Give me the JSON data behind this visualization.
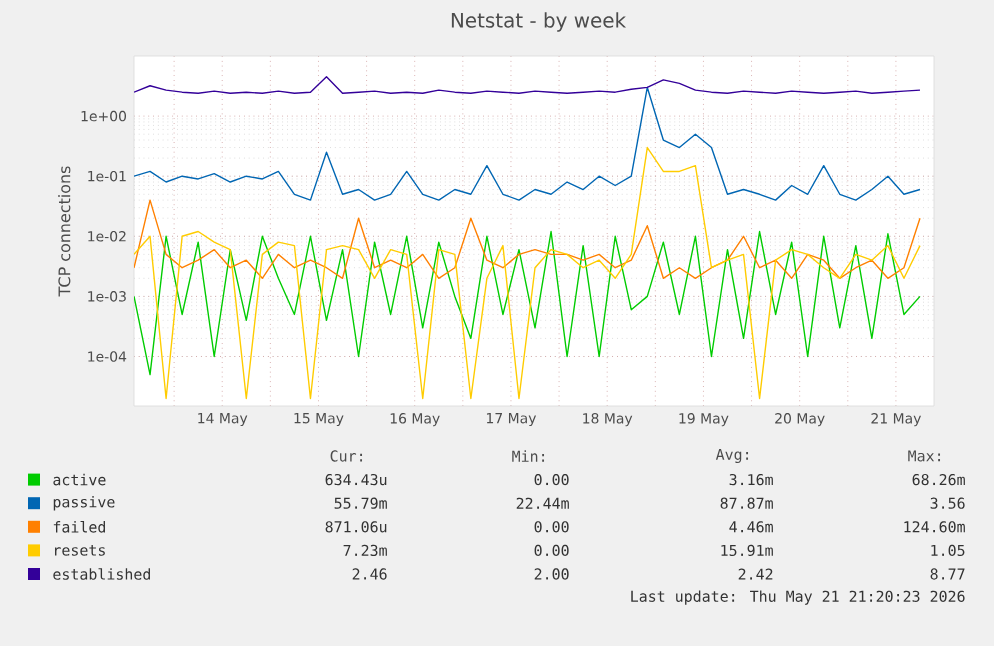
{
  "chart_data": {
    "type": "line",
    "title": "Netstat - by week",
    "ylabel": "TCP connections",
    "log": "y",
    "grid": true,
    "legend": "bottom",
    "xlim": [
      "2026-05-13T14:00",
      "2026-05-21T21:30"
    ],
    "ylim": [
      1.5e-05,
      10
    ],
    "yticks": [
      {
        "value": 0.0001,
        "label": "1e-04"
      },
      {
        "value": 0.001,
        "label": "1e-03"
      },
      {
        "value": 0.01,
        "label": "1e-02"
      },
      {
        "value": 0.1,
        "label": "1e-01"
      },
      {
        "value": 1,
        "label": "1e+00"
      }
    ],
    "xticks": [
      {
        "value": "2026-05-14T00:00",
        "label": null
      },
      {
        "value": "2026-05-14T12:00",
        "label": "14 May"
      },
      {
        "value": "2026-05-15T00:00",
        "label": null
      },
      {
        "value": "2026-05-15T12:00",
        "label": "15 May"
      },
      {
        "value": "2026-05-16T00:00",
        "label": null
      },
      {
        "value": "2026-05-16T12:00",
        "label": "16 May"
      },
      {
        "value": "2026-05-17T00:00",
        "label": null
      },
      {
        "value": "2026-05-17T12:00",
        "label": "17 May"
      },
      {
        "value": "2026-05-18T00:00",
        "label": null
      },
      {
        "value": "2026-05-18T12:00",
        "label": "18 May"
      },
      {
        "value": "2026-05-19T00:00",
        "label": null
      },
      {
        "value": "2026-05-19T12:00",
        "label": "19 May"
      },
      {
        "value": "2026-05-20T00:00",
        "label": null
      },
      {
        "value": "2026-05-20T12:00",
        "label": "20 May"
      },
      {
        "value": "2026-05-21T00:00",
        "label": null
      },
      {
        "value": "2026-05-21T12:00",
        "label": "21 May"
      }
    ],
    "x": [
      "2026-05-13T14:00",
      "2026-05-13T18:00",
      "2026-05-13T22:00",
      "2026-05-14T02:00",
      "2026-05-14T06:00",
      "2026-05-14T10:00",
      "2026-05-14T14:00",
      "2026-05-14T18:00",
      "2026-05-14T22:00",
      "2026-05-15T02:00",
      "2026-05-15T06:00",
      "2026-05-15T10:00",
      "2026-05-15T14:00",
      "2026-05-15T18:00",
      "2026-05-15T22:00",
      "2026-05-16T02:00",
      "2026-05-16T06:00",
      "2026-05-16T10:00",
      "2026-05-16T14:00",
      "2026-05-16T18:00",
      "2026-05-16T22:00",
      "2026-05-17T02:00",
      "2026-05-17T06:00",
      "2026-05-17T10:00",
      "2026-05-17T14:00",
      "2026-05-17T18:00",
      "2026-05-17T22:00",
      "2026-05-18T02:00",
      "2026-05-18T06:00",
      "2026-05-18T10:00",
      "2026-05-18T14:00",
      "2026-05-18T18:00",
      "2026-05-18T22:00",
      "2026-05-19T02:00",
      "2026-05-19T06:00",
      "2026-05-19T10:00",
      "2026-05-19T14:00",
      "2026-05-19T18:00",
      "2026-05-19T22:00",
      "2026-05-20T02:00",
      "2026-05-20T06:00",
      "2026-05-20T10:00",
      "2026-05-20T14:00",
      "2026-05-20T18:00",
      "2026-05-20T22:00",
      "2026-05-21T02:00",
      "2026-05-21T06:00",
      "2026-05-21T10:00",
      "2026-05-21T14:00",
      "2026-05-21T18:00"
    ],
    "series": [
      {
        "name": "active",
        "color": "#00cc00",
        "values": [
          0.001,
          5e-05,
          0.01,
          0.0005,
          0.008,
          0.0001,
          0.006,
          0.0004,
          0.01,
          0.002,
          0.0005,
          0.01,
          0.0004,
          0.006,
          0.0001,
          0.008,
          0.0005,
          0.01,
          0.0003,
          0.008,
          0.001,
          0.0002,
          0.01,
          0.0005,
          0.006,
          0.0003,
          0.012,
          0.0001,
          0.007,
          0.0001,
          0.01,
          0.0006,
          0.001,
          0.008,
          0.0005,
          0.01,
          0.0001,
          0.006,
          0.0002,
          0.012,
          0.0005,
          0.008,
          0.0001,
          0.01,
          0.0003,
          0.007,
          0.0002,
          0.011,
          0.0005,
          0.001
        ]
      },
      {
        "name": "passive",
        "color": "#0066b3",
        "values": [
          0.1,
          0.12,
          0.08,
          0.1,
          0.09,
          0.11,
          0.08,
          0.1,
          0.09,
          0.12,
          0.05,
          0.04,
          0.25,
          0.05,
          0.06,
          0.04,
          0.05,
          0.12,
          0.05,
          0.04,
          0.06,
          0.05,
          0.15,
          0.05,
          0.04,
          0.06,
          0.05,
          0.08,
          0.06,
          0.1,
          0.07,
          0.1,
          3.0,
          0.4,
          0.3,
          0.5,
          0.3,
          0.05,
          0.06,
          0.05,
          0.04,
          0.07,
          0.05,
          0.15,
          0.05,
          0.04,
          0.06,
          0.1,
          0.05,
          0.06
        ]
      },
      {
        "name": "failed",
        "color": "#ff8000",
        "values": [
          0.003,
          0.04,
          0.005,
          0.003,
          0.004,
          0.006,
          0.003,
          0.004,
          0.002,
          0.005,
          0.003,
          0.004,
          0.003,
          0.002,
          0.02,
          0.003,
          0.004,
          0.003,
          0.005,
          0.002,
          0.003,
          0.02,
          0.004,
          0.003,
          0.005,
          0.006,
          0.005,
          0.005,
          0.004,
          0.005,
          0.003,
          0.004,
          0.015,
          0.002,
          0.003,
          0.002,
          0.003,
          0.004,
          0.01,
          0.003,
          0.004,
          0.002,
          0.005,
          0.004,
          0.002,
          0.003,
          0.004,
          0.002,
          0.003,
          0.02
        ]
      },
      {
        "name": "resets",
        "color": "#ffcc00",
        "values": [
          0.005,
          0.01,
          2e-05,
          0.01,
          0.012,
          0.008,
          0.006,
          2e-05,
          0.005,
          0.008,
          0.007,
          2e-05,
          0.006,
          0.007,
          0.006,
          0.002,
          0.006,
          0.005,
          2e-05,
          0.006,
          0.005,
          2e-05,
          0.002,
          0.007,
          2e-05,
          0.003,
          0.006,
          0.005,
          0.003,
          0.004,
          0.002,
          0.005,
          0.3,
          0.12,
          0.12,
          0.15,
          0.003,
          0.004,
          0.005,
          2e-05,
          0.004,
          0.006,
          0.005,
          0.003,
          0.002,
          0.005,
          0.004,
          0.007,
          0.002,
          0.007
        ]
      },
      {
        "name": "established",
        "color": "#330099",
        "values": [
          2.5,
          3.2,
          2.7,
          2.5,
          2.4,
          2.6,
          2.4,
          2.5,
          2.4,
          2.6,
          2.4,
          2.5,
          4.5,
          2.4,
          2.5,
          2.6,
          2.4,
          2.5,
          2.4,
          2.7,
          2.5,
          2.4,
          2.6,
          2.5,
          2.4,
          2.6,
          2.5,
          2.4,
          2.5,
          2.6,
          2.5,
          2.8,
          3.0,
          4.0,
          3.5,
          2.7,
          2.5,
          2.4,
          2.6,
          2.5,
          2.4,
          2.6,
          2.5,
          2.4,
          2.5,
          2.6,
          2.4,
          2.5,
          2.6,
          2.7
        ]
      }
    ],
    "annotations": [
      "Cur:",
      "Min:",
      "Avg:",
      "Max:",
      "634.43u",
      "0.00",
      "3.16m",
      "68.26m",
      "55.79m",
      "22.44m",
      "87.87m",
      "3.56",
      "871.06u",
      "0.00",
      "4.46m",
      "124.60m",
      "7.23m",
      "0.00",
      "15.91m",
      "1.05",
      "2.46",
      "2.00",
      "2.42",
      "8.77",
      "Last update: Thu May 21 21:20:23 2026"
    ]
  }
}
